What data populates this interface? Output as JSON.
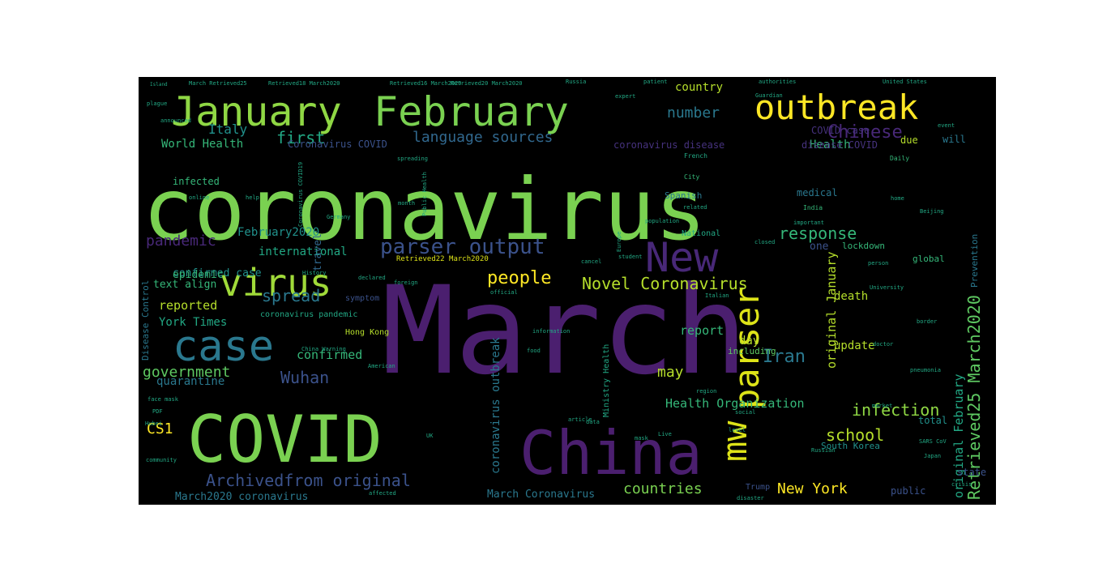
{
  "wordcloud": {
    "words": [
      {
        "text": "March",
        "color": "#4b1f6f",
        "weight": 1.0
      },
      {
        "text": "coronavirus",
        "color": "#7ad151",
        "weight": 0.95
      },
      {
        "text": "COVID",
        "color": "#7ad151",
        "weight": 0.7
      },
      {
        "text": "China",
        "color": "#4b1f6f",
        "weight": 0.65
      },
      {
        "text": "January",
        "color": "#8fd744",
        "weight": 0.45
      },
      {
        "text": "February",
        "color": "#7ad151",
        "weight": 0.45
      },
      {
        "text": "outbreak",
        "color": "#fde725",
        "weight": 0.4
      },
      {
        "text": "New",
        "color": "#482878",
        "weight": 0.4
      },
      {
        "text": "virus",
        "color": "#a0da39",
        "weight": 0.4
      },
      {
        "text": "case",
        "color": "#2a788e",
        "weight": 0.4
      },
      {
        "text": "parser",
        "color": "#dde318",
        "weight": 0.35
      },
      {
        "text": "mw",
        "color": "#dde318",
        "weight": 0.35
      },
      {
        "text": "parser output",
        "color": "#3b528b",
        "weight": 0.25
      },
      {
        "text": "Chinese",
        "color": "#482878",
        "weight": 0.2
      },
      {
        "text": "language sources",
        "color": "#31688e",
        "weight": 0.18
      },
      {
        "text": "Italy",
        "color": "#21918c",
        "weight": 0.18
      },
      {
        "text": "first",
        "color": "#22a884",
        "weight": 0.18
      },
      {
        "text": "number",
        "color": "#2a788e",
        "weight": 0.16
      },
      {
        "text": "country",
        "color": "#b5de2b",
        "weight": 0.14
      },
      {
        "text": "World Health",
        "color": "#35b779",
        "weight": 0.14
      },
      {
        "text": "Coronavirus COVID",
        "color": "#3b528b",
        "weight": 0.1
      },
      {
        "text": "COVID case",
        "color": "#46327e",
        "weight": 0.1
      },
      {
        "text": "Health",
        "color": "#35b779",
        "weight": 0.14
      },
      {
        "text": "coronavirus disease",
        "color": "#46327e",
        "weight": 0.1
      },
      {
        "text": "disease COVID",
        "color": "#46327e",
        "weight": 0.1
      },
      {
        "text": "infected",
        "color": "#35b779",
        "weight": 0.1
      },
      {
        "text": "pandemic",
        "color": "#482878",
        "weight": 0.18
      },
      {
        "text": "February2020",
        "color": "#21918c",
        "weight": 0.14
      },
      {
        "text": "international",
        "color": "#22a884",
        "weight": 0.12
      },
      {
        "text": "confirmed case",
        "color": "#21918c",
        "weight": 0.12
      },
      {
        "text": "epidemic",
        "color": "#35b779",
        "weight": 0.12
      },
      {
        "text": "text align",
        "color": "#35b779",
        "weight": 0.12
      },
      {
        "text": "reported",
        "color": "#b5de2b",
        "weight": 0.14
      },
      {
        "text": "York Times",
        "color": "#22a884",
        "weight": 0.14
      },
      {
        "text": "spread",
        "color": "#2a788e",
        "weight": 0.2
      },
      {
        "text": "people",
        "color": "#fde725",
        "weight": 0.2
      },
      {
        "text": "Novel Coronavirus",
        "color": "#b5de2b",
        "weight": 0.2
      },
      {
        "text": "response",
        "color": "#35b779",
        "weight": 0.2
      },
      {
        "text": "Retrieved25 March2020",
        "color": "#5ec962",
        "weight": 0.2
      },
      {
        "text": "original February",
        "color": "#22a884",
        "weight": 0.14
      },
      {
        "text": "original January",
        "color": "#b5de2b",
        "weight": 0.14
      },
      {
        "text": "Iran",
        "color": "#2a788e",
        "weight": 0.2
      },
      {
        "text": "report",
        "color": "#35b779",
        "weight": 0.14
      },
      {
        "text": "confirmed",
        "color": "#35b779",
        "weight": 0.14
      },
      {
        "text": "government",
        "color": "#5ec962",
        "weight": 0.18
      },
      {
        "text": "Wuhan",
        "color": "#3b528b",
        "weight": 0.18
      },
      {
        "text": "quarantine",
        "color": "#2a788e",
        "weight": 0.14
      },
      {
        "text": "may",
        "color": "#b5de2b",
        "weight": 0.18
      },
      {
        "text": "day",
        "color": "#b5de2b",
        "weight": 0.14
      },
      {
        "text": "death",
        "color": "#b5de2b",
        "weight": 0.12
      },
      {
        "text": "update",
        "color": "#b5de2b",
        "weight": 0.12
      },
      {
        "text": "infection",
        "color": "#8fd744",
        "weight": 0.2
      },
      {
        "text": "Health Organization",
        "color": "#35b779",
        "weight": 0.14
      },
      {
        "text": "school",
        "color": "#b5de2b",
        "weight": 0.18
      },
      {
        "text": "CS1",
        "color": "#fde725",
        "weight": 0.16
      },
      {
        "text": "coronavirus outbreak",
        "color": "#2a788e",
        "weight": 0.14
      },
      {
        "text": "Archivedfrom original",
        "color": "#3b528b",
        "weight": 0.2
      },
      {
        "text": "March2020 coronavirus",
        "color": "#2a788e",
        "weight": 0.12
      },
      {
        "text": "March Coronavirus",
        "color": "#2a788e",
        "weight": 0.12
      },
      {
        "text": "countries",
        "color": "#7ad151",
        "weight": 0.18
      },
      {
        "text": "New York",
        "color": "#fde725",
        "weight": 0.18
      },
      {
        "text": "Hong Kong",
        "color": "#b5de2b",
        "weight": 0.1
      },
      {
        "text": "coronavirus pandemic",
        "color": "#22a884",
        "weight": 0.1
      },
      {
        "text": "lockdown",
        "color": "#35b779",
        "weight": 0.1
      },
      {
        "text": "one",
        "color": "#3b528b",
        "weight": 0.14
      },
      {
        "text": "medical",
        "color": "#2a788e",
        "weight": 0.12
      },
      {
        "text": "Spanish",
        "color": "#2a788e",
        "weight": 0.1
      },
      {
        "text": "including",
        "color": "#5ec962",
        "weight": 0.1
      },
      {
        "text": "Ministry Health",
        "color": "#22a884",
        "weight": 0.1
      },
      {
        "text": "symptom",
        "color": "#3b528b",
        "weight": 0.1
      },
      {
        "text": "Retrieved22 March2020",
        "color": "#dde318",
        "weight": 0.08
      },
      {
        "text": "Disease Control",
        "color": "#2a788e",
        "weight": 0.1
      },
      {
        "text": "South Korea",
        "color": "#21918c",
        "weight": 0.08
      },
      {
        "text": "total",
        "color": "#21918c",
        "weight": 0.1
      },
      {
        "text": "public",
        "color": "#3b528b",
        "weight": 0.1
      },
      {
        "text": "state",
        "color": "#3b528b",
        "weight": 0.1
      },
      {
        "text": "will",
        "color": "#2a788e",
        "weight": 0.1
      },
      {
        "text": "due",
        "color": "#b5de2b",
        "weight": 0.1
      },
      {
        "text": "Prevention",
        "color": "#2a788e",
        "weight": 0.08
      },
      {
        "text": "global",
        "color": "#35b779",
        "weight": 0.08
      },
      {
        "text": "National",
        "color": "#22a884",
        "weight": 0.08
      },
      {
        "text": "travel",
        "color": "#31688e",
        "weight": 0.1
      },
      {
        "text": "Trump",
        "color": "#3b528b",
        "weight": 0.08
      },
      {
        "text": "Daily",
        "color": "#35b779",
        "weight": 0.06
      },
      {
        "text": "City",
        "color": "#35b779",
        "weight": 0.06
      },
      {
        "text": "India",
        "color": "#35b779",
        "weight": 0.06
      },
      {
        "text": "French",
        "color": "#22a884",
        "weight": 0.06
      },
      {
        "text": "Guardian",
        "color": "#22a884",
        "weight": 0.05
      },
      {
        "text": "Russia",
        "color": "#22a884",
        "weight": 0.05
      },
      {
        "text": "Germany",
        "color": "#22a884",
        "weight": 0.05
      },
      {
        "text": "Japan",
        "color": "#22a884",
        "weight": 0.05
      },
      {
        "text": "plague",
        "color": "#22a884",
        "weight": 0.05
      },
      {
        "text": "patient",
        "color": "#22a884",
        "weight": 0.05
      },
      {
        "text": "authorities",
        "color": "#22a884",
        "weight": 0.05
      },
      {
        "text": "United States",
        "color": "#22a884",
        "weight": 0.05
      },
      {
        "text": "Island",
        "color": "#22a884",
        "weight": 0.04
      },
      {
        "text": "event",
        "color": "#22a884",
        "weight": 0.05
      },
      {
        "text": "home",
        "color": "#22a884",
        "weight": 0.05
      },
      {
        "text": "Beijing",
        "color": "#22a884",
        "weight": 0.05
      },
      {
        "text": "related",
        "color": "#22a884",
        "weight": 0.05
      },
      {
        "text": "important",
        "color": "#22a884",
        "weight": 0.05
      },
      {
        "text": "closed",
        "color": "#22a884",
        "weight": 0.05
      },
      {
        "text": "person",
        "color": "#22a884",
        "weight": 0.05
      },
      {
        "text": "University",
        "color": "#22a884",
        "weight": 0.05
      },
      {
        "text": "Italian",
        "color": "#22a884",
        "weight": 0.05
      },
      {
        "text": "border",
        "color": "#22a884",
        "weight": 0.05
      },
      {
        "text": "doctor",
        "color": "#22a884",
        "weight": 0.05
      },
      {
        "text": "pneumonia",
        "color": "#22a884",
        "weight": 0.05
      },
      {
        "text": "market",
        "color": "#22a884",
        "weight": 0.05
      },
      {
        "text": "social",
        "color": "#22a884",
        "weight": 0.05
      },
      {
        "text": "Russian",
        "color": "#22a884",
        "weight": 0.05
      },
      {
        "text": "region",
        "color": "#22a884",
        "weight": 0.05
      },
      {
        "text": "level",
        "color": "#22a884",
        "weight": 0.05
      },
      {
        "text": "disaster",
        "color": "#22a884",
        "weight": 0.05
      },
      {
        "text": "affected",
        "color": "#22a884",
        "weight": 0.05
      },
      {
        "text": "crisis",
        "color": "#22a884",
        "weight": 0.05
      },
      {
        "text": "SARS CoV",
        "color": "#22a884",
        "weight": 0.05
      },
      {
        "text": "official",
        "color": "#22a884",
        "weight": 0.05
      },
      {
        "text": "information",
        "color": "#22a884",
        "weight": 0.05
      },
      {
        "text": "food",
        "color": "#22a884",
        "weight": 0.05
      },
      {
        "text": "data",
        "color": "#22a884",
        "weight": 0.05
      },
      {
        "text": "mask",
        "color": "#22a884",
        "weight": 0.05
      },
      {
        "text": "online",
        "color": "#22a884",
        "weight": 0.05
      },
      {
        "text": "help",
        "color": "#22a884",
        "weight": 0.05
      },
      {
        "text": "month",
        "color": "#22a884",
        "weight": 0.05
      },
      {
        "text": "Public Health",
        "color": "#22a884",
        "weight": 0.05
      },
      {
        "text": "population",
        "color": "#22a884",
        "weight": 0.05
      },
      {
        "text": "announced",
        "color": "#22a884",
        "weight": 0.05
      },
      {
        "text": "spreading",
        "color": "#22a884",
        "weight": 0.05
      },
      {
        "text": "expert",
        "color": "#22a884",
        "weight": 0.05
      },
      {
        "text": "declared",
        "color": "#22a884",
        "weight": 0.05
      },
      {
        "text": "History",
        "color": "#22a884",
        "weight": 0.05
      },
      {
        "text": "Europe",
        "color": "#22a884",
        "weight": 0.05
      },
      {
        "text": "student",
        "color": "#22a884",
        "weight": 0.05
      },
      {
        "text": "foreign",
        "color": "#22a884",
        "weight": 0.05
      },
      {
        "text": "cancel",
        "color": "#22a884",
        "weight": 0.05
      },
      {
        "text": "China Warning",
        "color": "#22a884",
        "weight": 0.05
      },
      {
        "text": "American",
        "color": "#22a884",
        "weight": 0.05
      },
      {
        "text": "article",
        "color": "#22a884",
        "weight": 0.05
      },
      {
        "text": "Live",
        "color": "#22a884",
        "weight": 0.05
      },
      {
        "text": "UK",
        "color": "#22a884",
        "weight": 0.05
      },
      {
        "text": "Hubei",
        "color": "#22a884",
        "weight": 0.05
      },
      {
        "text": "PDF",
        "color": "#22a884",
        "weight": 0.05
      },
      {
        "text": "face mask",
        "color": "#22a884",
        "weight": 0.05
      },
      {
        "text": "community",
        "color": "#22a884",
        "weight": 0.05
      },
      {
        "text": "Retrieved16 March2020",
        "color": "#22a884",
        "weight": 0.05
      },
      {
        "text": "Retrieved18 March2020",
        "color": "#22a884",
        "weight": 0.05
      },
      {
        "text": "Retrieved20 March2020",
        "color": "#22a884",
        "weight": 0.05
      },
      {
        "text": "March Retrieved25",
        "color": "#22a884",
        "weight": 0.05
      },
      {
        "text": "Coronavirus COVID19",
        "color": "#22a884",
        "weight": 0.05
      }
    ]
  }
}
